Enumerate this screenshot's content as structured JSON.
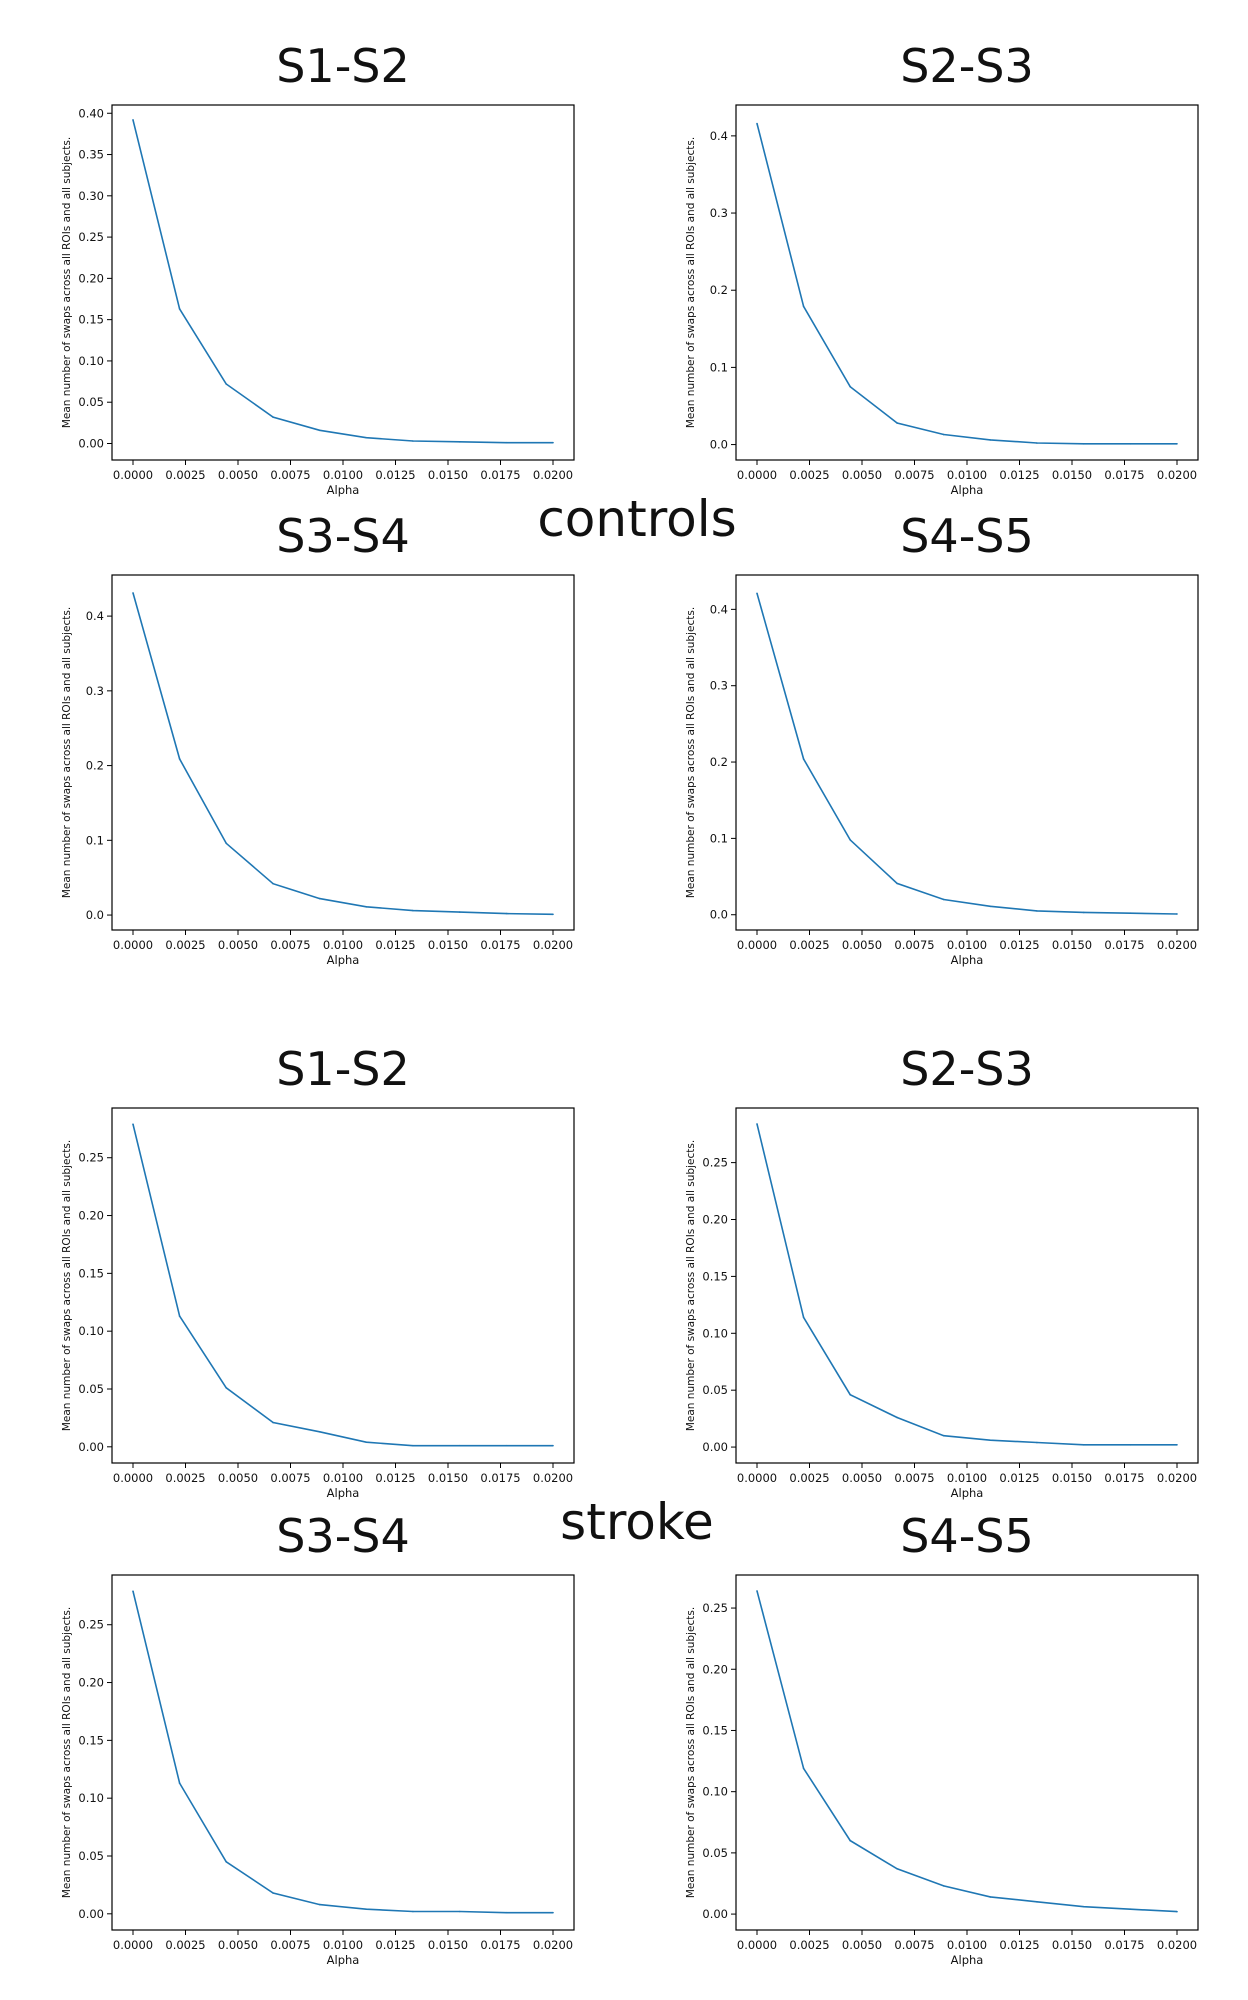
{
  "groups": {
    "controls": "controls",
    "stroke": "stroke"
  },
  "style": {
    "line_color": "#1f77b4",
    "axis_color": "#000000"
  },
  "chart_data": [
    {
      "id": "controls-s1-s2",
      "type": "line",
      "title": "S1-S2",
      "xlabel": "Alpha",
      "ylabel": "Mean number of swaps across all ROIs and all subjects.",
      "xlim": [
        -0.001,
        0.021
      ],
      "ylim": [
        -0.02,
        0.41
      ],
      "xticks": [
        "0.0000",
        "0.0025",
        "0.0050",
        "0.0075",
        "0.0100",
        "0.0125",
        "0.0150",
        "0.0175",
        "0.0200"
      ],
      "yticks": [
        "0.00",
        "0.05",
        "0.10",
        "0.15",
        "0.20",
        "0.25",
        "0.30",
        "0.35",
        "0.40"
      ],
      "x": [
        0.0,
        0.00222,
        0.00444,
        0.00667,
        0.00889,
        0.01111,
        0.01333,
        0.01556,
        0.01778,
        0.02
      ],
      "series": [
        {
          "values": [
            0.392,
            0.163,
            0.072,
            0.032,
            0.016,
            0.007,
            0.003,
            0.002,
            0.001,
            0.001
          ]
        }
      ]
    },
    {
      "id": "controls-s2-s3",
      "type": "line",
      "title": "S2-S3",
      "xlabel": "Alpha",
      "ylabel": "Mean number of swaps across all ROIs and all subjects.",
      "xlim": [
        -0.001,
        0.021
      ],
      "ylim": [
        -0.02,
        0.44
      ],
      "xticks": [
        "0.0000",
        "0.0025",
        "0.0050",
        "0.0075",
        "0.0100",
        "0.0125",
        "0.0150",
        "0.0175",
        "0.0200"
      ],
      "yticks": [
        "0.0",
        "0.1",
        "0.2",
        "0.3",
        "0.4"
      ],
      "x": [
        0.0,
        0.00222,
        0.00444,
        0.00667,
        0.00889,
        0.01111,
        0.01333,
        0.01556,
        0.01778,
        0.02
      ],
      "series": [
        {
          "values": [
            0.416,
            0.179,
            0.075,
            0.028,
            0.013,
            0.006,
            0.002,
            0.001,
            0.001,
            0.001
          ]
        }
      ]
    },
    {
      "id": "controls-s3-s4",
      "type": "line",
      "title": "S3-S4",
      "xlabel": "Alpha",
      "ylabel": "Mean number of swaps across all ROIs and all subjects.",
      "xlim": [
        -0.001,
        0.021
      ],
      "ylim": [
        -0.02,
        0.455
      ],
      "xticks": [
        "0.0000",
        "0.0025",
        "0.0050",
        "0.0075",
        "0.0100",
        "0.0125",
        "0.0150",
        "0.0175",
        "0.0200"
      ],
      "yticks": [
        "0.0",
        "0.1",
        "0.2",
        "0.3",
        "0.4"
      ],
      "x": [
        0.0,
        0.00222,
        0.00444,
        0.00667,
        0.00889,
        0.01111,
        0.01333,
        0.01556,
        0.01778,
        0.02
      ],
      "series": [
        {
          "values": [
            0.431,
            0.209,
            0.096,
            0.042,
            0.022,
            0.011,
            0.006,
            0.004,
            0.002,
            0.001
          ]
        }
      ]
    },
    {
      "id": "controls-s4-s5",
      "type": "line",
      "title": "S4-S5",
      "xlabel": "Alpha",
      "ylabel": "Mean number of swaps across all ROIs and all subjects.",
      "xlim": [
        -0.001,
        0.021
      ],
      "ylim": [
        -0.02,
        0.445
      ],
      "xticks": [
        "0.0000",
        "0.0025",
        "0.0050",
        "0.0075",
        "0.0100",
        "0.0125",
        "0.0150",
        "0.0175",
        "0.0200"
      ],
      "yticks": [
        "0.0",
        "0.1",
        "0.2",
        "0.3",
        "0.4"
      ],
      "x": [
        0.0,
        0.00222,
        0.00444,
        0.00667,
        0.00889,
        0.01111,
        0.01333,
        0.01556,
        0.01778,
        0.02
      ],
      "series": [
        {
          "values": [
            0.421,
            0.204,
            0.098,
            0.041,
            0.02,
            0.011,
            0.005,
            0.003,
            0.002,
            0.001
          ]
        }
      ]
    },
    {
      "id": "stroke-s1-s2",
      "type": "line",
      "title": "S1-S2",
      "xlabel": "Alpha",
      "ylabel": "Mean number of swaps across all ROIs and all subjects.",
      "xlim": [
        -0.001,
        0.021
      ],
      "ylim": [
        -0.014,
        0.293
      ],
      "xticks": [
        "0.0000",
        "0.0025",
        "0.0050",
        "0.0075",
        "0.0100",
        "0.0125",
        "0.0150",
        "0.0175",
        "0.0200"
      ],
      "yticks": [
        "0.00",
        "0.05",
        "0.10",
        "0.15",
        "0.20",
        "0.25"
      ],
      "x": [
        0.0,
        0.00222,
        0.00444,
        0.00667,
        0.00889,
        0.01111,
        0.01333,
        0.01556,
        0.01778,
        0.02
      ],
      "series": [
        {
          "values": [
            0.279,
            0.113,
            0.051,
            0.021,
            0.013,
            0.004,
            0.001,
            0.001,
            0.001,
            0.001
          ]
        }
      ]
    },
    {
      "id": "stroke-s2-s3",
      "type": "line",
      "title": "S2-S3",
      "xlabel": "Alpha",
      "ylabel": "Mean number of swaps across all ROIs and all subjects.",
      "xlim": [
        -0.001,
        0.021
      ],
      "ylim": [
        -0.014,
        0.298
      ],
      "xticks": [
        "0.0000",
        "0.0025",
        "0.0050",
        "0.0075",
        "0.0100",
        "0.0125",
        "0.0150",
        "0.0175",
        "0.0200"
      ],
      "yticks": [
        "0.00",
        "0.05",
        "0.10",
        "0.15",
        "0.20",
        "0.25"
      ],
      "x": [
        0.0,
        0.00222,
        0.00444,
        0.00667,
        0.00889,
        0.01111,
        0.01333,
        0.01556,
        0.01778,
        0.02
      ],
      "series": [
        {
          "values": [
            0.284,
            0.114,
            0.046,
            0.026,
            0.01,
            0.006,
            0.004,
            0.002,
            0.002,
            0.002
          ]
        }
      ]
    },
    {
      "id": "stroke-s3-s4",
      "type": "line",
      "title": "S3-S4",
      "xlabel": "Alpha",
      "ylabel": "Mean number of swaps across all ROIs and all subjects.",
      "xlim": [
        -0.001,
        0.021
      ],
      "ylim": [
        -0.014,
        0.293
      ],
      "xticks": [
        "0.0000",
        "0.0025",
        "0.0050",
        "0.0075",
        "0.0100",
        "0.0125",
        "0.0150",
        "0.0175",
        "0.0200"
      ],
      "yticks": [
        "0.00",
        "0.05",
        "0.10",
        "0.15",
        "0.20",
        "0.25"
      ],
      "x": [
        0.0,
        0.00222,
        0.00444,
        0.00667,
        0.00889,
        0.01111,
        0.01333,
        0.01556,
        0.01778,
        0.02
      ],
      "series": [
        {
          "values": [
            0.279,
            0.113,
            0.045,
            0.018,
            0.008,
            0.004,
            0.002,
            0.002,
            0.001,
            0.001
          ]
        }
      ]
    },
    {
      "id": "stroke-s4-s5",
      "type": "line",
      "title": "S4-S5",
      "xlabel": "Alpha",
      "ylabel": "Mean number of swaps across all ROIs and all subjects.",
      "xlim": [
        -0.001,
        0.021
      ],
      "ylim": [
        -0.013,
        0.277
      ],
      "xticks": [
        "0.0000",
        "0.0025",
        "0.0050",
        "0.0075",
        "0.0100",
        "0.0125",
        "0.0150",
        "0.0175",
        "0.0200"
      ],
      "yticks": [
        "0.00",
        "0.05",
        "0.10",
        "0.15",
        "0.20",
        "0.25"
      ],
      "x": [
        0.0,
        0.00222,
        0.00444,
        0.00667,
        0.00889,
        0.01111,
        0.01333,
        0.01556,
        0.01778,
        0.02
      ],
      "series": [
        {
          "values": [
            0.264,
            0.119,
            0.06,
            0.037,
            0.023,
            0.014,
            0.01,
            0.006,
            0.004,
            0.002
          ]
        }
      ]
    }
  ]
}
